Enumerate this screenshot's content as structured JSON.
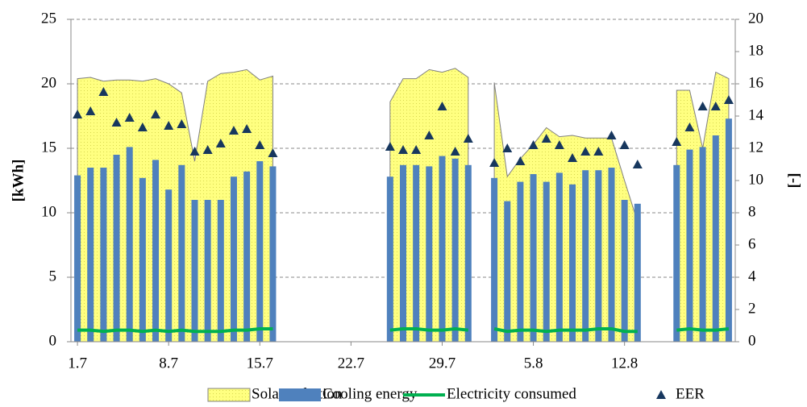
{
  "chart_data": {
    "type": "combo",
    "categories": [
      "1.7",
      null,
      null,
      null,
      null,
      null,
      null,
      "8.7",
      null,
      null,
      null,
      null,
      null,
      null,
      "15.7",
      null,
      null,
      null,
      null,
      null,
      null,
      "22.7",
      null,
      null,
      null,
      null,
      null,
      null,
      "29.7",
      null,
      null,
      null,
      null,
      null,
      null,
      "5.8",
      null,
      null,
      null,
      null,
      null,
      null,
      "12.8",
      null,
      null,
      null,
      null,
      null,
      null,
      null,
      null
    ],
    "ylabel": "[kWh]",
    "y2label": "[-]",
    "ylim": [
      0,
      25
    ],
    "yticks": [
      0,
      5,
      10,
      15,
      20,
      25
    ],
    "y2lim": [
      0,
      20
    ],
    "y2ticks": [
      0,
      2,
      4,
      6,
      8,
      10,
      12,
      14,
      16,
      18,
      20
    ],
    "grid": true,
    "legend": "bottom",
    "series": [
      {
        "name": "Solar radiation",
        "type": "area",
        "color": "#ffff80",
        "values": [
          20.4,
          20.5,
          20.2,
          20.3,
          20.3,
          20.2,
          20.4,
          20.0,
          19.3,
          14.0,
          20.2,
          20.8,
          20.9,
          21.1,
          20.3,
          20.6,
          null,
          null,
          null,
          null,
          null,
          null,
          null,
          null,
          18.6,
          20.4,
          20.4,
          21.1,
          20.9,
          21.2,
          20.5,
          null,
          20.1,
          12.8,
          14.2,
          15.3,
          16.6,
          15.9,
          16.0,
          15.8,
          15.8,
          15.8,
          12.5,
          9.3,
          null,
          null,
          19.5,
          19.5,
          15.0,
          20.9,
          20.4
        ]
      },
      {
        "name": "Cooling energy",
        "type": "bar",
        "color": "#4f81bd",
        "values": [
          12.9,
          13.5,
          13.5,
          14.5,
          15.1,
          12.7,
          14.1,
          11.8,
          13.7,
          11.0,
          11.0,
          11.0,
          12.8,
          13.2,
          14.0,
          13.6,
          null,
          null,
          null,
          null,
          null,
          null,
          null,
          null,
          12.8,
          13.7,
          13.7,
          13.6,
          14.4,
          14.2,
          13.7,
          null,
          12.7,
          10.9,
          12.4,
          13.0,
          12.4,
          13.1,
          12.2,
          13.3,
          13.3,
          13.5,
          11.0,
          10.7,
          null,
          null,
          13.7,
          14.9,
          15.1,
          16.0,
          17.3
        ]
      },
      {
        "name": "Electricity consumed",
        "type": "line",
        "color": "#00b050",
        "values": [
          0.9,
          0.9,
          0.8,
          0.9,
          0.9,
          0.8,
          0.9,
          0.8,
          0.9,
          0.8,
          0.8,
          0.8,
          0.9,
          0.9,
          1.0,
          1.0,
          null,
          null,
          null,
          null,
          null,
          null,
          null,
          null,
          0.9,
          1.0,
          1.0,
          0.9,
          0.9,
          1.0,
          0.9,
          null,
          1.0,
          0.8,
          0.9,
          0.9,
          0.8,
          0.9,
          0.9,
          0.9,
          1.0,
          1.0,
          0.8,
          0.8,
          null,
          null,
          0.9,
          1.0,
          0.9,
          0.9,
          1.0
        ]
      },
      {
        "name": "EER",
        "type": "scatter",
        "axis": "y2",
        "color": "#17375e",
        "values": [
          14.1,
          14.3,
          15.5,
          13.6,
          13.9,
          13.3,
          14.1,
          13.4,
          13.5,
          11.8,
          11.9,
          12.3,
          13.1,
          13.2,
          12.2,
          11.7,
          null,
          null,
          null,
          null,
          null,
          null,
          null,
          null,
          12.1,
          11.9,
          11.9,
          12.8,
          14.6,
          11.8,
          12.6,
          null,
          11.1,
          12.0,
          11.2,
          12.2,
          12.6,
          12.2,
          11.4,
          11.8,
          11.8,
          12.8,
          12.2,
          11.0,
          null,
          null,
          12.4,
          13.3,
          14.6,
          14.6,
          15.0
        ]
      }
    ]
  }
}
